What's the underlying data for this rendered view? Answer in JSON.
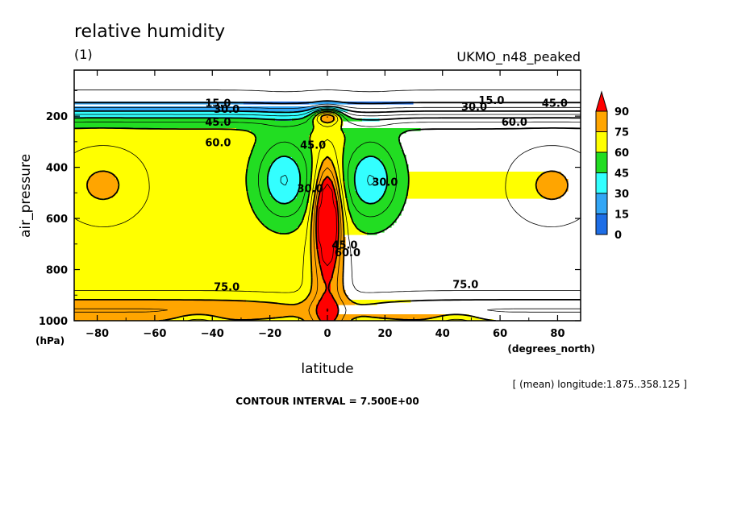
{
  "chart_data": {
    "type": "heatmap",
    "title": "relative humidity",
    "subtitle": "(1)",
    "dataset": "UKMO_n48_peaked",
    "xlabel": "latitude",
    "xunits": "(degrees_north)",
    "ylabel": "air_pressure",
    "yunits": "(hPa)",
    "xlim": [
      -88,
      88
    ],
    "ylim": [
      1000,
      20
    ],
    "xticks": [
      -80,
      -60,
      -40,
      -20,
      0,
      20,
      40,
      60,
      80
    ],
    "yticks": [
      200,
      400,
      600,
      800,
      1000
    ],
    "xtick_labels": [
      "−80",
      "−60",
      "−40",
      "−20",
      "0",
      "20",
      "40",
      "60",
      "80"
    ],
    "ytick_labels": [
      "200",
      "400",
      "600",
      "800",
      "1000"
    ],
    "note": "[ (mean) longitude:1.875..358.125 ]",
    "contour_interval_text": "CONTOUR INTERVAL = 7.500E+00",
    "legend": {
      "levels": [
        0,
        15,
        30,
        45,
        60,
        75,
        90
      ],
      "labels": [
        "0",
        "15",
        "30",
        "45",
        "60",
        "75",
        "90"
      ],
      "colors": [
        "#1e6ee6",
        "#33a6f5",
        "#33ffff",
        "#22dd22",
        "#ffff00",
        "#ffa500",
        "#ff0000"
      ],
      "placement": "right"
    },
    "contour_labels": [
      {
        "text": "15.0",
        "lat": -38,
        "p": 150
      },
      {
        "text": "30.0",
        "lat": -35,
        "p": 175
      },
      {
        "text": "45.0",
        "lat": -38,
        "p": 225
      },
      {
        "text": "60.0",
        "lat": -38,
        "p": 305
      },
      {
        "text": "45.0",
        "lat": -5,
        "p": 315
      },
      {
        "text": "30.0",
        "lat": -6,
        "p": 485
      },
      {
        "text": "30.0",
        "lat": 20,
        "p": 460
      },
      {
        "text": "45.0",
        "lat": 6,
        "p": 705
      },
      {
        "text": "60.0",
        "lat": 7,
        "p": 735
      },
      {
        "text": "75.0",
        "lat": -35,
        "p": 870
      },
      {
        "text": "75.0",
        "lat": 48,
        "p": 860
      },
      {
        "text": "15.0",
        "lat": 57,
        "p": 140
      },
      {
        "text": "30.0",
        "lat": 51,
        "p": 165
      },
      {
        "text": "45.0",
        "lat": 79,
        "p": 150
      },
      {
        "text": "60.0",
        "lat": 65,
        "p": 225
      }
    ]
  }
}
